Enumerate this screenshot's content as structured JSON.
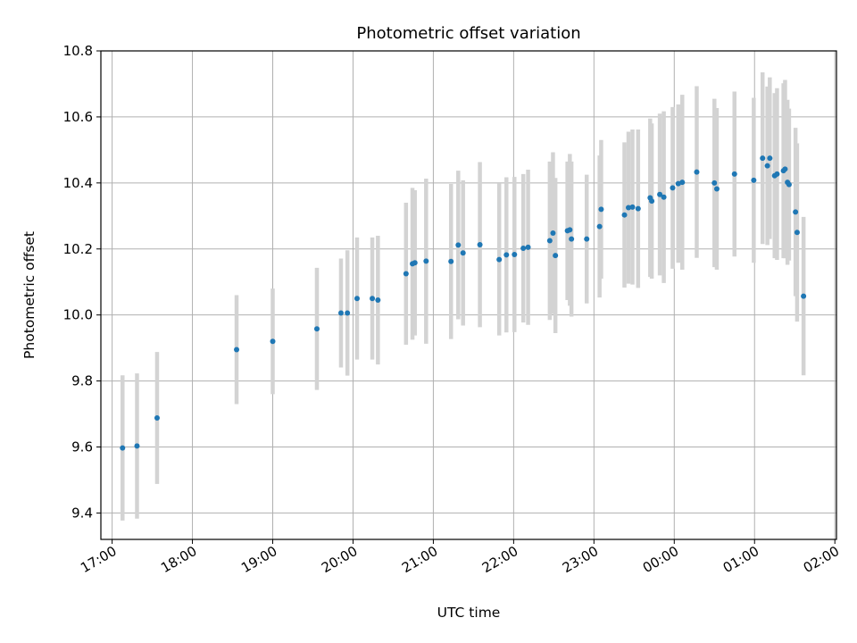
{
  "chart_data": {
    "type": "scatter",
    "title": "Photometric offset variation",
    "xlabel": "UTC time",
    "ylabel": "Photometric offset",
    "x_unit": "hours (UTC; values past 24 are after midnight)",
    "xlim": [
      16.86,
      26.02
    ],
    "ylim": [
      9.32,
      10.8
    ],
    "x_ticks": [
      17,
      18,
      19,
      20,
      21,
      22,
      23,
      24,
      25,
      26
    ],
    "x_tick_labels": [
      "17:00",
      "18:00",
      "19:00",
      "20:00",
      "21:00",
      "22:00",
      "23:00",
      "00:00",
      "01:00",
      "02:00"
    ],
    "y_ticks": [
      9.4,
      9.6,
      9.8,
      10.0,
      10.2,
      10.4,
      10.6,
      10.8
    ],
    "y_tick_labels": [
      "9.4",
      "9.6",
      "9.8",
      "10.0",
      "10.2",
      "10.4",
      "10.6",
      "10.8"
    ],
    "grid": true,
    "colors": {
      "point": "#1f77b4",
      "errorbar": "#d3d3d3",
      "grid": "#b0b0b0"
    },
    "series": [
      {
        "x": [
          17.13,
          17.31,
          17.56,
          18.55,
          19.0,
          19.55,
          19.85,
          19.93,
          20.05,
          20.24,
          20.31,
          20.66,
          20.74,
          20.77,
          20.91,
          21.22,
          21.31,
          21.37,
          21.58,
          21.82,
          21.91,
          22.01,
          22.12,
          22.18,
          22.45,
          22.49,
          22.52,
          22.67,
          22.7,
          22.72,
          22.91,
          23.07,
          23.09,
          23.38,
          23.43,
          23.48,
          23.55,
          23.7,
          23.72,
          23.82,
          23.87,
          23.98,
          24.05,
          24.1,
          24.28,
          24.5,
          24.53,
          24.75,
          24.99,
          25.1,
          25.16,
          25.19,
          25.25,
          25.28,
          25.36,
          25.38,
          25.41,
          25.43,
          25.51,
          25.53,
          25.61
        ],
        "y": [
          9.597,
          9.603,
          9.688,
          9.895,
          9.92,
          9.958,
          10.006,
          10.006,
          10.05,
          10.05,
          10.045,
          10.125,
          10.155,
          10.158,
          10.163,
          10.162,
          10.212,
          10.188,
          10.213,
          10.168,
          10.182,
          10.183,
          10.202,
          10.205,
          10.225,
          10.248,
          10.18,
          10.255,
          10.258,
          10.23,
          10.23,
          10.268,
          10.32,
          10.303,
          10.325,
          10.327,
          10.322,
          10.355,
          10.345,
          10.365,
          10.357,
          10.385,
          10.398,
          10.402,
          10.433,
          10.4,
          10.382,
          10.427,
          10.408,
          10.475,
          10.452,
          10.475,
          10.422,
          10.427,
          10.437,
          10.442,
          10.402,
          10.395,
          10.312,
          10.25,
          10.057
        ],
        "err": [
          0.22,
          0.22,
          0.2,
          0.165,
          0.16,
          0.185,
          0.165,
          0.19,
          0.185,
          0.185,
          0.195,
          0.215,
          0.23,
          0.22,
          0.25,
          0.235,
          0.225,
          0.22,
          0.25,
          0.23,
          0.235,
          0.235,
          0.225,
          0.235,
          0.24,
          0.245,
          0.235,
          0.21,
          0.23,
          0.235,
          0.195,
          0.215,
          0.21,
          0.22,
          0.23,
          0.235,
          0.24,
          0.24,
          0.235,
          0.245,
          0.26,
          0.245,
          0.24,
          0.265,
          0.26,
          0.255,
          0.245,
          0.25,
          0.25,
          0.26,
          0.24,
          0.245,
          0.25,
          0.26,
          0.265,
          0.27,
          0.25,
          0.23,
          0.255,
          0.27,
          0.24
        ]
      }
    ]
  }
}
